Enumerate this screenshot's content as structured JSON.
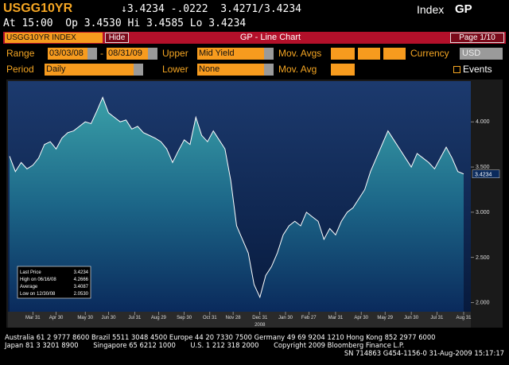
{
  "header": {
    "ticker": "USGG10YR",
    "quote": "↓3.4234 -.0222  3.4271/3.4234",
    "index": "Index",
    "function": "GP",
    "line2": "At 15:00  Op 3.4530 Hi 3.4585 Lo 3.4234"
  },
  "toolbar": {
    "security": "USGG10YR INDEX",
    "hide": "Hide",
    "title": "GP - Line Chart",
    "page": "Page 1/10"
  },
  "controls": {
    "range_label": "Range",
    "range_from": "03/03/08",
    "range_sep": "-",
    "range_to": "08/31/09",
    "upper_label": "Upper",
    "upper": "Mid Yield",
    "mov_avgs_label": "Mov. Avgs",
    "currency_label": "Currency",
    "currency": "USD",
    "period_label": "Period",
    "period": "Daily",
    "lower_label": "Lower",
    "lower": "None",
    "mov_avg_label": "Mov. Avg",
    "events": "Events"
  },
  "chart_data": {
    "type": "area",
    "color": "#ffffff",
    "x": [
      0,
      1,
      2,
      3,
      4,
      5,
      6,
      7,
      8,
      9,
      10,
      11,
      12,
      13,
      14,
      15,
      16,
      17,
      18,
      19,
      20,
      21,
      22,
      23,
      24,
      25,
      26,
      27,
      28,
      29,
      30,
      31,
      32,
      33,
      34,
      35,
      36,
      37,
      38,
      39,
      40,
      41,
      42,
      43,
      44,
      45,
      46,
      47,
      48,
      49,
      50,
      51,
      52,
      53,
      54,
      55,
      56,
      57,
      58,
      59,
      60,
      61,
      62,
      63,
      64,
      65,
      66,
      67,
      68,
      69,
      70,
      71,
      72,
      73,
      74,
      75,
      76,
      77,
      78
    ],
    "values": [
      3.62,
      3.45,
      3.55,
      3.48,
      3.52,
      3.6,
      3.75,
      3.78,
      3.7,
      3.82,
      3.88,
      3.9,
      3.95,
      4.0,
      3.98,
      4.12,
      4.27,
      4.1,
      4.05,
      4.0,
      4.02,
      3.92,
      3.95,
      3.88,
      3.85,
      3.82,
      3.78,
      3.7,
      3.55,
      3.68,
      3.8,
      3.75,
      4.05,
      3.85,
      3.78,
      3.9,
      3.8,
      3.7,
      3.35,
      2.85,
      2.7,
      2.55,
      2.2,
      2.06,
      2.3,
      2.4,
      2.55,
      2.75,
      2.85,
      2.9,
      2.85,
      3.0,
      2.95,
      2.9,
      2.7,
      2.82,
      2.75,
      2.9,
      3.0,
      3.05,
      3.15,
      3.25,
      3.45,
      3.6,
      3.75,
      3.9,
      3.8,
      3.7,
      3.6,
      3.5,
      3.65,
      3.6,
      3.55,
      3.48,
      3.6,
      3.72,
      3.6,
      3.45,
      3.4234
    ],
    "xlim": [
      0,
      78
    ],
    "xticks": [
      {
        "value": 4,
        "label": "Mar 31"
      },
      {
        "value": 8,
        "label": "Apr 30"
      },
      {
        "value": 13,
        "label": "May 30"
      },
      {
        "value": 17,
        "label": "Jun 30"
      },
      {
        "value": 21.5,
        "label": "Jul 31"
      },
      {
        "value": 25.6,
        "label": "Aug 29"
      },
      {
        "value": 30,
        "label": "Sep 30"
      },
      {
        "value": 34.4,
        "label": "Oct 31"
      },
      {
        "value": 38.4,
        "label": "Nov 28"
      },
      {
        "value": 43,
        "label": "Dec 31"
      },
      {
        "value": 47.4,
        "label": "Jan 30"
      },
      {
        "value": 51.4,
        "label": "Feb 27"
      },
      {
        "value": 56,
        "label": "Mar 31"
      },
      {
        "value": 60.4,
        "label": "Apr 30"
      },
      {
        "value": 64.5,
        "label": "May 29"
      },
      {
        "value": 69,
        "label": "Jun 30"
      },
      {
        "value": 73.4,
        "label": "Jul 31"
      },
      {
        "value": 78,
        "label": "Aug 31"
      }
    ],
    "year_label": "2008",
    "ylim": [
      1.9,
      4.45
    ],
    "yticks": [
      {
        "value": 2,
        "label": "2.000"
      },
      {
        "value": 2.5,
        "label": "2.500"
      },
      {
        "value": 3,
        "label": "3.000"
      },
      {
        "value": 3.5,
        "label": "3.500"
      },
      {
        "value": 4,
        "label": "4.000"
      }
    ],
    "last_label": "3.4234",
    "grid": false,
    "stats": [
      {
        "label": "Last Price",
        "value": "3.4234"
      },
      {
        "label": "High on 06/16/08",
        "value": "4.2666"
      },
      {
        "label": "Average",
        "value": "3.4087"
      },
      {
        "label": "Low on 12/30/08",
        "value": "2.0530"
      }
    ]
  },
  "footer": [
    "Australia 61 2 9777 8600 Brazil 5511 3048 4500 Europe 44 20 7330 7500 Germany 49 69 9204 1210 Hong Kong 852 2977 6000",
    "Japan 81 3 3201 8900       Singapore 65 6212 1000       U.S. 1 212 318 2000       Copyright 2009 Bloomberg Finance L.P.",
    "SN 714863 G454-1156-0 31-Aug-2009 15:17:17"
  ]
}
